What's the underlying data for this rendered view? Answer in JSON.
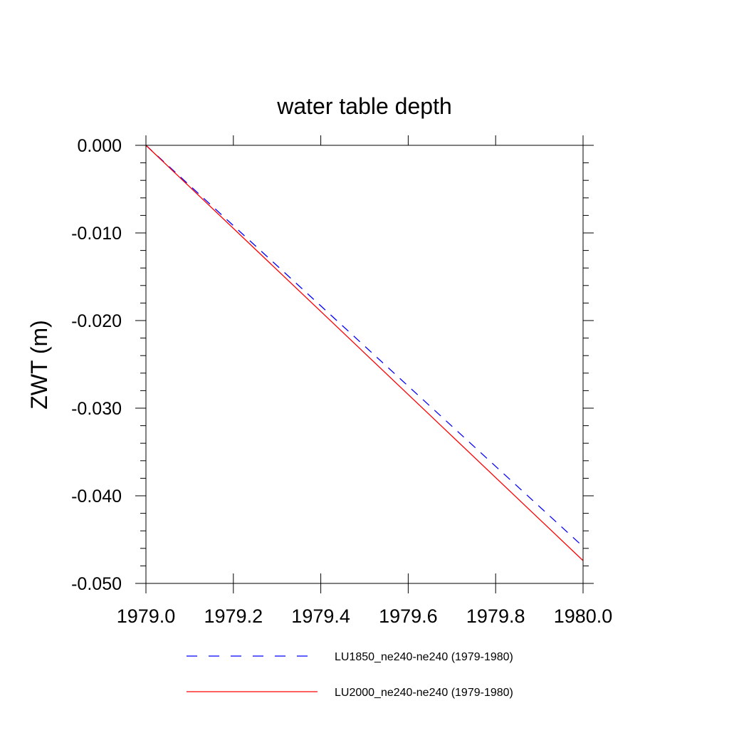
{
  "chart_data": {
    "type": "line",
    "title": "water table depth",
    "xlabel": "",
    "ylabel": "ZWT  (m)",
    "xlim": [
      1979.0,
      1980.0
    ],
    "ylim": [
      -0.05,
      0.0
    ],
    "x_ticks": [
      1979.0,
      1979.2,
      1979.4,
      1979.6,
      1979.8,
      1980.0
    ],
    "x_tick_labels": [
      "1979.0",
      "1979.2",
      "1979.4",
      "1979.6",
      "1979.8",
      "1980.0"
    ],
    "y_ticks": [
      0.0,
      -0.01,
      -0.02,
      -0.03,
      -0.04,
      -0.05
    ],
    "y_tick_labels": [
      "0.000",
      "-0.010",
      "-0.020",
      "-0.030",
      "-0.040",
      "-0.050"
    ],
    "grid": false,
    "legend_position": "bottom",
    "series": [
      {
        "name": "LU1850_ne240-ne240 (1979-1980)",
        "color": "#0000ff",
        "dash": "dashed",
        "x": [
          1979.0,
          1980.0
        ],
        "y": [
          0.0,
          -0.0458
        ]
      },
      {
        "name": "LU2000_ne240-ne240 (1979-1980)",
        "color": "#ff0000",
        "dash": "solid",
        "x": [
          1979.0,
          1980.0
        ],
        "y": [
          0.0,
          -0.0474
        ]
      }
    ]
  }
}
